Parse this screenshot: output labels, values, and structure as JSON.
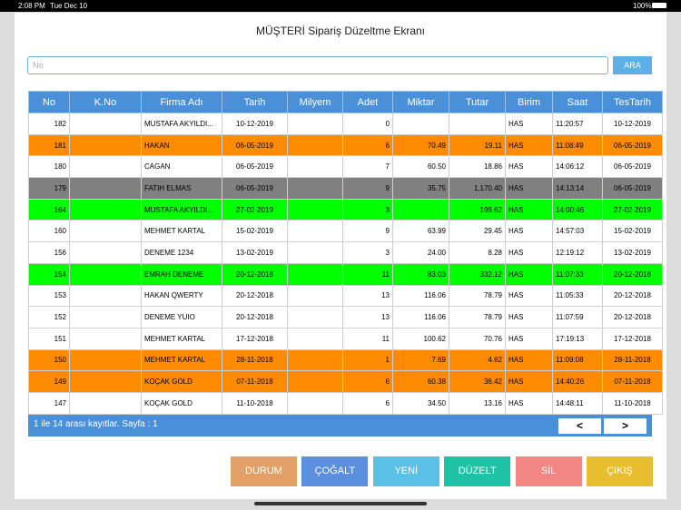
{
  "statusbar": {
    "time": "2:08 PM",
    "date": "Tue Dec 10",
    "battery": "100%"
  },
  "header": {
    "title": "MÜŞTERİ Sipariş Düzeltme Ekranı"
  },
  "search": {
    "placeholder": "No",
    "button": "ARA"
  },
  "table": {
    "columns": [
      "No",
      "K.No",
      "Firma Adı",
      "Tarih",
      "Milyem",
      "Adet",
      "Miktar",
      "Tutar",
      "Birim",
      "Saat",
      "TesTarih"
    ],
    "rows": [
      {
        "color": "#ffffff",
        "cells": [
          "182",
          null,
          "MUSTAFA AKYILDI...",
          "10-12-2019",
          null,
          "0",
          null,
          null,
          "HAS",
          "11:20:57",
          "10-12-2019"
        ]
      },
      {
        "color": "#ff8c00",
        "cells": [
          "181",
          null,
          "HAKAN",
          "06-05-2019",
          null,
          "6",
          "70.49",
          "19.11",
          "HAS",
          "11:08:49",
          "06-05-2019"
        ]
      },
      {
        "color": "#ffffff",
        "cells": [
          "180",
          null,
          "CAGAN",
          "06-05-2019",
          null,
          "7",
          "60.50",
          "18.86",
          "HAS",
          "14:06:12",
          "06-05-2019"
        ]
      },
      {
        "color": "#808080",
        "cells": [
          "179",
          null,
          "FATIH ELMAS",
          "06-05-2019",
          null,
          "9",
          "35.75",
          "1,170.40",
          "HAS",
          "14:13:14",
          "06-05-2019"
        ]
      },
      {
        "color": "#00ff00",
        "cells": [
          "164",
          null,
          "MUSTAFA AKYILDI...",
          "27-02-2019",
          null,
          "3",
          null,
          "199.62",
          "HAS",
          "14:00:46",
          "27-02-2019"
        ]
      },
      {
        "color": "#ffffff",
        "cells": [
          "160",
          null,
          "MEHMET KARTAL",
          "15-02-2019",
          null,
          "9",
          "63.99",
          "29.45",
          "HAS",
          "14:57:03",
          "15-02-2019"
        ]
      },
      {
        "color": "#ffffff",
        "cells": [
          "156",
          null,
          "DENEME 1234",
          "13-02-2019",
          null,
          "3",
          "24.00",
          "8.28",
          "HAS",
          "12:19:12",
          "13-02-2019"
        ]
      },
      {
        "color": "#00ff00",
        "cells": [
          "154",
          null,
          "EMRAH DENEME",
          "20-12-2018",
          null,
          "11",
          "83.03",
          "332.12",
          "HAS",
          "11:07:33",
          "20-12-2018"
        ]
      },
      {
        "color": "#ffffff",
        "cells": [
          "153",
          null,
          "HAKAN QWERTY",
          "20-12-2018",
          null,
          "13",
          "116.06",
          "78.79",
          "HAS",
          "11:05:33",
          "20-12-2018"
        ]
      },
      {
        "color": "#ffffff",
        "cells": [
          "152",
          null,
          "DENEME YUIO",
          "20-12-2018",
          null,
          "13",
          "116.06",
          "78.79",
          "HAS",
          "11:07:59",
          "20-12-2018"
        ]
      },
      {
        "color": "#ffffff",
        "cells": [
          "151",
          null,
          "MEHMET KARTAL",
          "17-12-2018",
          null,
          "11",
          "100.62",
          "70.76",
          "HAS",
          "17:19:13",
          "17-12-2018"
        ]
      },
      {
        "color": "#ff8c00",
        "cells": [
          "150",
          null,
          "MEHMET KARTAL",
          "28-11-2018",
          null,
          "1",
          "7.69",
          "4.62",
          "HAS",
          "11:09:08",
          "28-11-2018"
        ]
      },
      {
        "color": "#ff8c00",
        "cells": [
          "149",
          null,
          "KOÇAK GOLD",
          "07-11-2018",
          null,
          "6",
          "60.38",
          "36.42",
          "HAS",
          "14:40:26",
          "07-11-2018"
        ]
      },
      {
        "color": "#ffffff",
        "cells": [
          "147",
          null,
          "KOÇAK GOLD",
          "11-10-2018",
          null,
          "6",
          "34.50",
          "13.16",
          "HAS",
          "14:48:11",
          "11-10-2018"
        ]
      }
    ]
  },
  "footer": {
    "info": "1 ile 14 arası kayıtlar. Sayfa : 1",
    "prev": "<",
    "next": ">"
  },
  "buttons": [
    {
      "label": "DURUM",
      "color": "#e3a066"
    },
    {
      "label": "ÇOĞALT",
      "color": "#5b8fde"
    },
    {
      "label": "YENİ",
      "color": "#5bc0e6"
    },
    {
      "label": "DÜZELT",
      "color": "#1fc2a4"
    },
    {
      "label": "SİL",
      "color": "#f38585"
    },
    {
      "label": "ÇIKIŞ",
      "color": "#e8bd2e"
    }
  ]
}
